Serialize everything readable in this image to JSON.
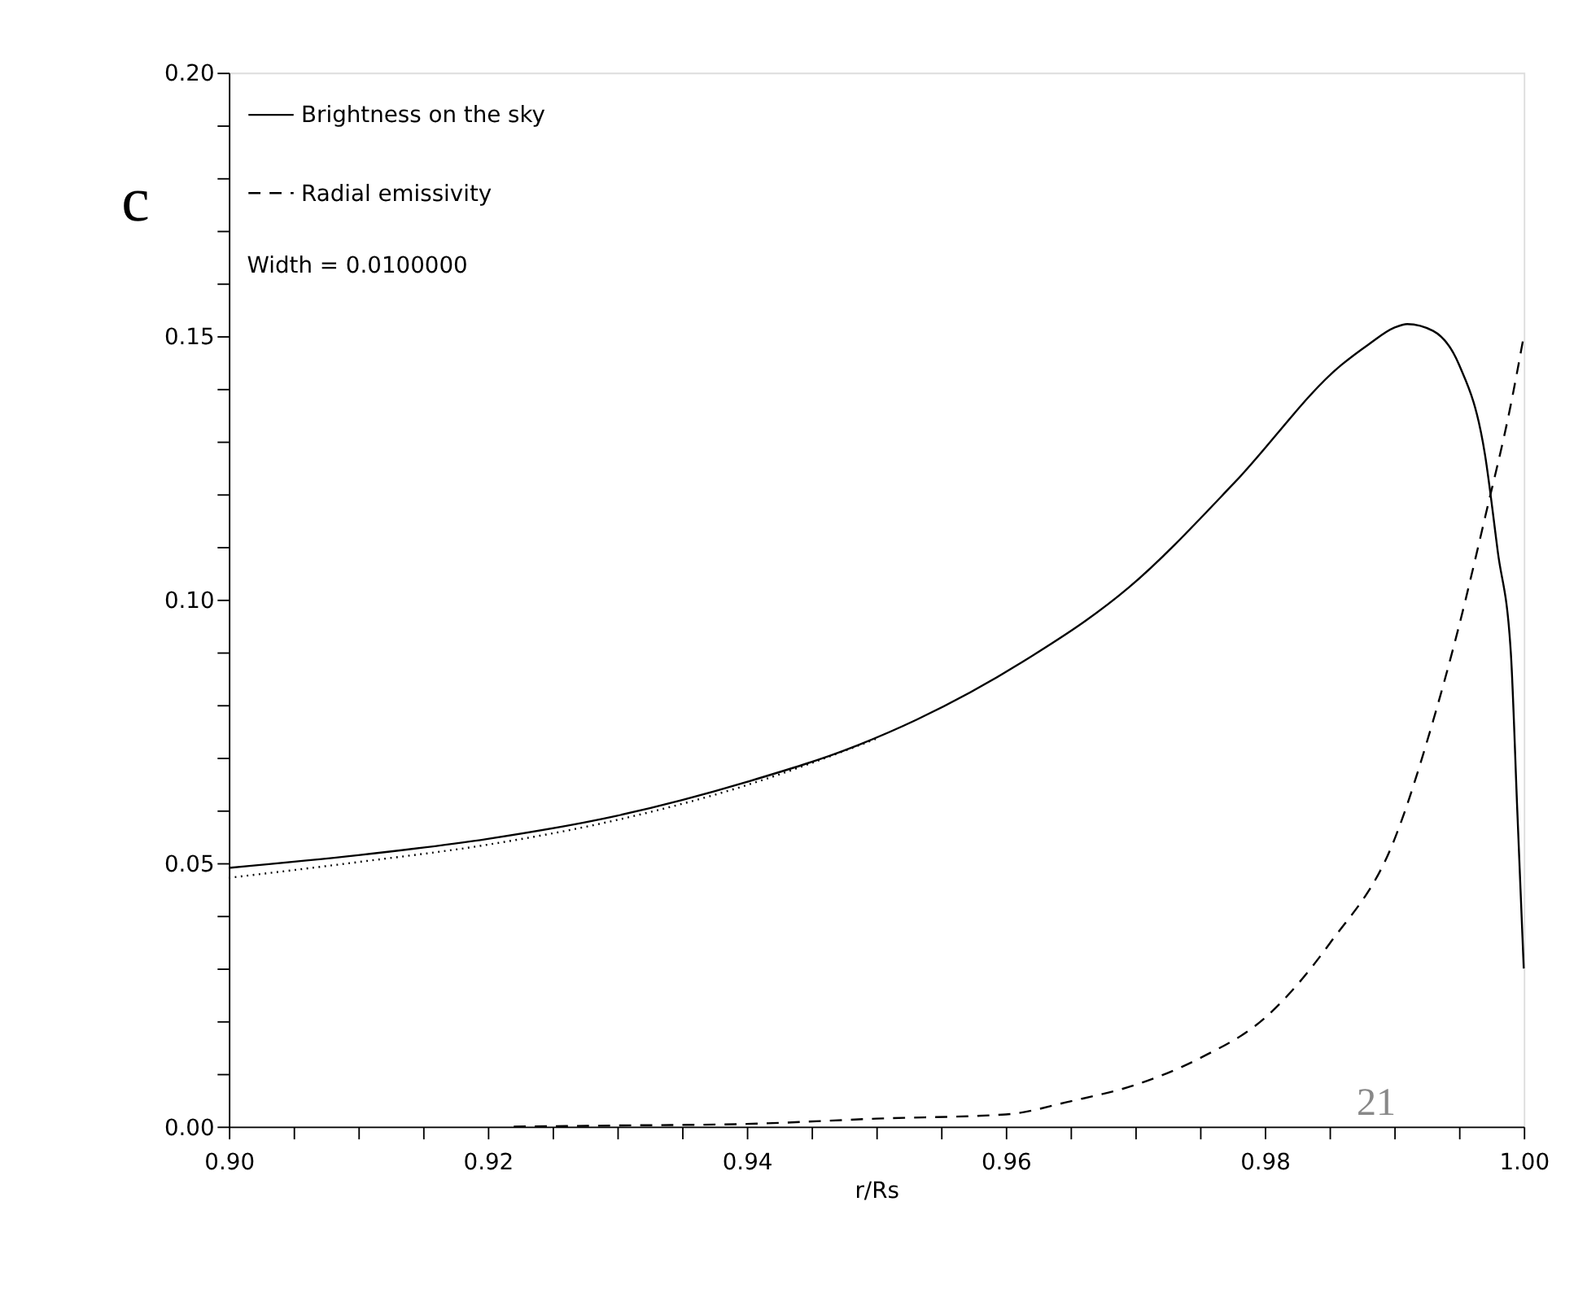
{
  "chart_data": {
    "type": "line",
    "xlabel": "r/Rs",
    "annotations": [
      "Width = 0.0100000",
      "c",
      "21"
    ],
    "series": [
      {
        "name": "Brightness on the sky",
        "color": "#000000",
        "line_style": "solid",
        "x": [
          0.9,
          0.91,
          0.92,
          0.93,
          0.94,
          0.9486,
          0.9531,
          0.9613,
          0.9695,
          0.9777,
          0.9859,
          0.988,
          0.99,
          0.991,
          0.993,
          0.995,
          0.997,
          0.998,
          0.999,
          0.9995,
          1.0
        ],
        "values": [
          0.0491,
          0.0515,
          0.0546,
          0.059,
          0.0654,
          0.0724,
          0.0772,
          0.0882,
          0.1023,
          0.1223,
          0.1445,
          0.1484,
          0.1516,
          0.1523,
          0.151,
          0.1446,
          0.1276,
          0.109,
          0.09,
          0.06,
          0.03
        ]
      },
      {
        "name": "Radial emissivity",
        "color": "#000000",
        "line_style": "dashed",
        "x": [
          0.922,
          0.93,
          0.94,
          0.95,
          0.96,
          0.965,
          0.97,
          0.975,
          0.98,
          0.985,
          0.99,
          0.993,
          0.995,
          0.997,
          0.999,
          1.0
        ],
        "values": [
          0.0,
          0.0002,
          0.0005,
          0.0015,
          0.0023,
          0.0048,
          0.0079,
          0.013,
          0.0206,
          0.0347,
          0.0544,
          0.077,
          0.095,
          0.1155,
          0.137,
          0.15
        ]
      },
      {
        "color": "#000000",
        "line_style": "dotted",
        "x": [
          0.9,
          0.91,
          0.92,
          0.93,
          0.94,
          0.95
        ],
        "values": [
          0.0472,
          0.0502,
          0.0535,
          0.0582,
          0.0648,
          0.0736
        ]
      }
    ],
    "xlim": [
      0.9,
      1.0
    ],
    "ylim": [
      0.0,
      0.2
    ],
    "xticks": [
      {
        "value": 0.9,
        "label": "0.90"
      },
      {
        "value": 0.905,
        "label": null
      },
      {
        "value": 0.91,
        "label": null
      },
      {
        "value": 0.915,
        "label": null
      },
      {
        "value": 0.92,
        "label": "0.92"
      },
      {
        "value": 0.925,
        "label": null
      },
      {
        "value": 0.93,
        "label": null
      },
      {
        "value": 0.935,
        "label": null
      },
      {
        "value": 0.94,
        "label": "0.94"
      },
      {
        "value": 0.945,
        "label": null
      },
      {
        "value": 0.95,
        "label": null
      },
      {
        "value": 0.955,
        "label": null
      },
      {
        "value": 0.96,
        "label": "0.96"
      },
      {
        "value": 0.965,
        "label": null
      },
      {
        "value": 0.97,
        "label": null
      },
      {
        "value": 0.975,
        "label": null
      },
      {
        "value": 0.98,
        "label": "0.98"
      },
      {
        "value": 0.985,
        "label": null
      },
      {
        "value": 0.99,
        "label": null
      },
      {
        "value": 0.995,
        "label": null
      },
      {
        "value": 1.0,
        "label": "1.00"
      }
    ],
    "yticks": [
      {
        "value": 0.0,
        "label": "0.00"
      },
      {
        "value": 0.01,
        "label": null
      },
      {
        "value": 0.02,
        "label": null
      },
      {
        "value": 0.03,
        "label": null
      },
      {
        "value": 0.04,
        "label": null
      },
      {
        "value": 0.05,
        "label": "0.05"
      },
      {
        "value": 0.06,
        "label": null
      },
      {
        "value": 0.07,
        "label": null
      },
      {
        "value": 0.08,
        "label": null
      },
      {
        "value": 0.09,
        "label": null
      },
      {
        "value": 0.1,
        "label": "0.10"
      },
      {
        "value": 0.11,
        "label": null
      },
      {
        "value": 0.12,
        "label": null
      },
      {
        "value": 0.13,
        "label": null
      },
      {
        "value": 0.14,
        "label": null
      },
      {
        "value": 0.15,
        "label": "0.15"
      },
      {
        "value": 0.16,
        "label": null
      },
      {
        "value": 0.17,
        "label": null
      },
      {
        "value": 0.18,
        "label": null
      },
      {
        "value": 0.19,
        "label": null
      },
      {
        "value": 0.2,
        "label": "0.20"
      }
    ],
    "grid": false,
    "legend": "top left",
    "marker": "none"
  }
}
